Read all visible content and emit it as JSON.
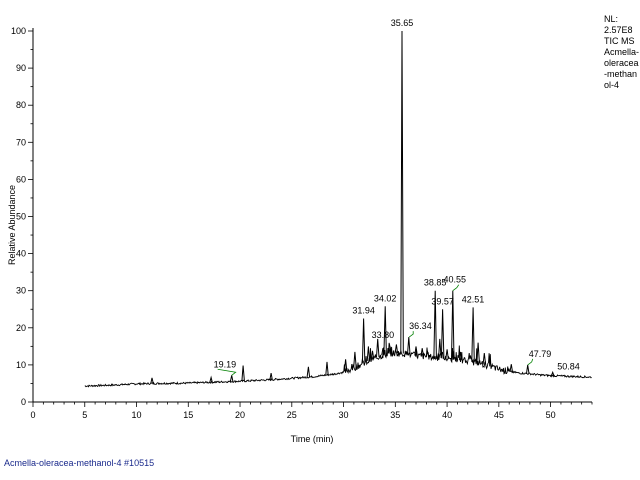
{
  "chart_data": {
    "type": "line",
    "xlabel": "Time (min)",
    "ylabel": "Relative Abundance",
    "xlim": [
      0,
      54
    ],
    "ylim": [
      0,
      100
    ],
    "x_ticks": [
      0,
      5,
      10,
      15,
      20,
      25,
      30,
      35,
      40,
      45,
      50
    ],
    "y_ticks": [
      0,
      10,
      20,
      30,
      40,
      50,
      60,
      70,
      80,
      90,
      100
    ],
    "baseline": [
      [
        5.0,
        4.3
      ],
      [
        8,
        4.6
      ],
      [
        10,
        4.9
      ],
      [
        12,
        5.0
      ],
      [
        15,
        5.1
      ],
      [
        18,
        5.4
      ],
      [
        20,
        5.6
      ],
      [
        23,
        6.0
      ],
      [
        25,
        6.4
      ],
      [
        27,
        6.8
      ],
      [
        29,
        7.5
      ],
      [
        30,
        8.0
      ],
      [
        31,
        9.2
      ],
      [
        32,
        10.5
      ],
      [
        33,
        11.8
      ],
      [
        34,
        12.8
      ],
      [
        35,
        13.2
      ],
      [
        36,
        13.0
      ],
      [
        37,
        12.5
      ],
      [
        38,
        12.2
      ],
      [
        39,
        12.0
      ],
      [
        40,
        11.6
      ],
      [
        41,
        11.4
      ],
      [
        42,
        11.0
      ],
      [
        43,
        10.6
      ],
      [
        44,
        9.8
      ],
      [
        45,
        8.8
      ],
      [
        46,
        8.2
      ],
      [
        47,
        7.8
      ],
      [
        48,
        7.6
      ],
      [
        49,
        7.3
      ],
      [
        50,
        7.1
      ],
      [
        52,
        6.9
      ],
      [
        54,
        6.7
      ]
    ],
    "peaks": [
      {
        "x": 11.5,
        "y": 6.5
      },
      {
        "x": 17.2,
        "y": 6.6
      },
      {
        "x": 19.19,
        "y": 7.2
      },
      {
        "x": 20.3,
        "y": 9.8
      },
      {
        "x": 23.0,
        "y": 7.8
      },
      {
        "x": 26.6,
        "y": 9.5
      },
      {
        "x": 28.4,
        "y": 10.8
      },
      {
        "x": 30.2,
        "y": 11.5
      },
      {
        "x": 31.1,
        "y": 13.5
      },
      {
        "x": 31.94,
        "y": 22.5
      },
      {
        "x": 32.4,
        "y": 15.0
      },
      {
        "x": 32.8,
        "y": 13.8
      },
      {
        "x": 33.3,
        "y": 17.0
      },
      {
        "x": 33.8,
        "y": 14.5
      },
      {
        "x": 34.02,
        "y": 25.8
      },
      {
        "x": 34.5,
        "y": 15.0
      },
      {
        "x": 35.1,
        "y": 15.5
      },
      {
        "x": 35.65,
        "y": 100
      },
      {
        "x": 36.3,
        "y": 17.5
      },
      {
        "x": 37.0,
        "y": 15.0
      },
      {
        "x": 37.6,
        "y": 14.5
      },
      {
        "x": 38.1,
        "y": 13.8
      },
      {
        "x": 38.85,
        "y": 30.0
      },
      {
        "x": 39.3,
        "y": 17.0
      },
      {
        "x": 39.57,
        "y": 25.0
      },
      {
        "x": 40.0,
        "y": 14.2
      },
      {
        "x": 40.55,
        "y": 30.0
      },
      {
        "x": 41.3,
        "y": 13.5
      },
      {
        "x": 42.51,
        "y": 25.5
      },
      {
        "x": 43.0,
        "y": 16.0
      },
      {
        "x": 43.6,
        "y": 13.2
      },
      {
        "x": 46.2,
        "y": 10.2
      },
      {
        "x": 47.79,
        "y": 10.0
      },
      {
        "x": 50.2,
        "y": 8.0
      }
    ],
    "peak_labels": [
      {
        "text": "19.19",
        "x": 19.19,
        "y": 7.2
      },
      {
        "text": "31.94",
        "x": 31.94,
        "y": 22.5
      },
      {
        "text": "33.80",
        "x": 33.8,
        "y": 14.5
      },
      {
        "text": "34.02",
        "x": 34.02,
        "y": 25.8
      },
      {
        "text": "35.65",
        "x": 35.65,
        "y": 100
      },
      {
        "text": "36.34",
        "x": 36.34,
        "y": 17.5
      },
      {
        "text": "38.85",
        "x": 38.85,
        "y": 30.0
      },
      {
        "text": "39.57",
        "x": 39.57,
        "y": 25.0
      },
      {
        "text": "40.55",
        "x": 40.55,
        "y": 30.0
      },
      {
        "text": "42.51",
        "x": 42.51,
        "y": 25.5
      },
      {
        "text": "47.79",
        "x": 47.79,
        "y": 10.0
      },
      {
        "text": "50.84",
        "x": 50.84,
        "y": 7.1
      }
    ],
    "grid": false,
    "line_color": "#000000",
    "label_line_color": "#008000"
  },
  "info": {
    "nl_label": "NL:",
    "nl_value": "2.57E8",
    "tic_label": "TIC  MS",
    "sample_name": "Acmella-oleracea-methanol-4"
  },
  "footer": "Acmella-oleracea-methanol-4 #10515"
}
